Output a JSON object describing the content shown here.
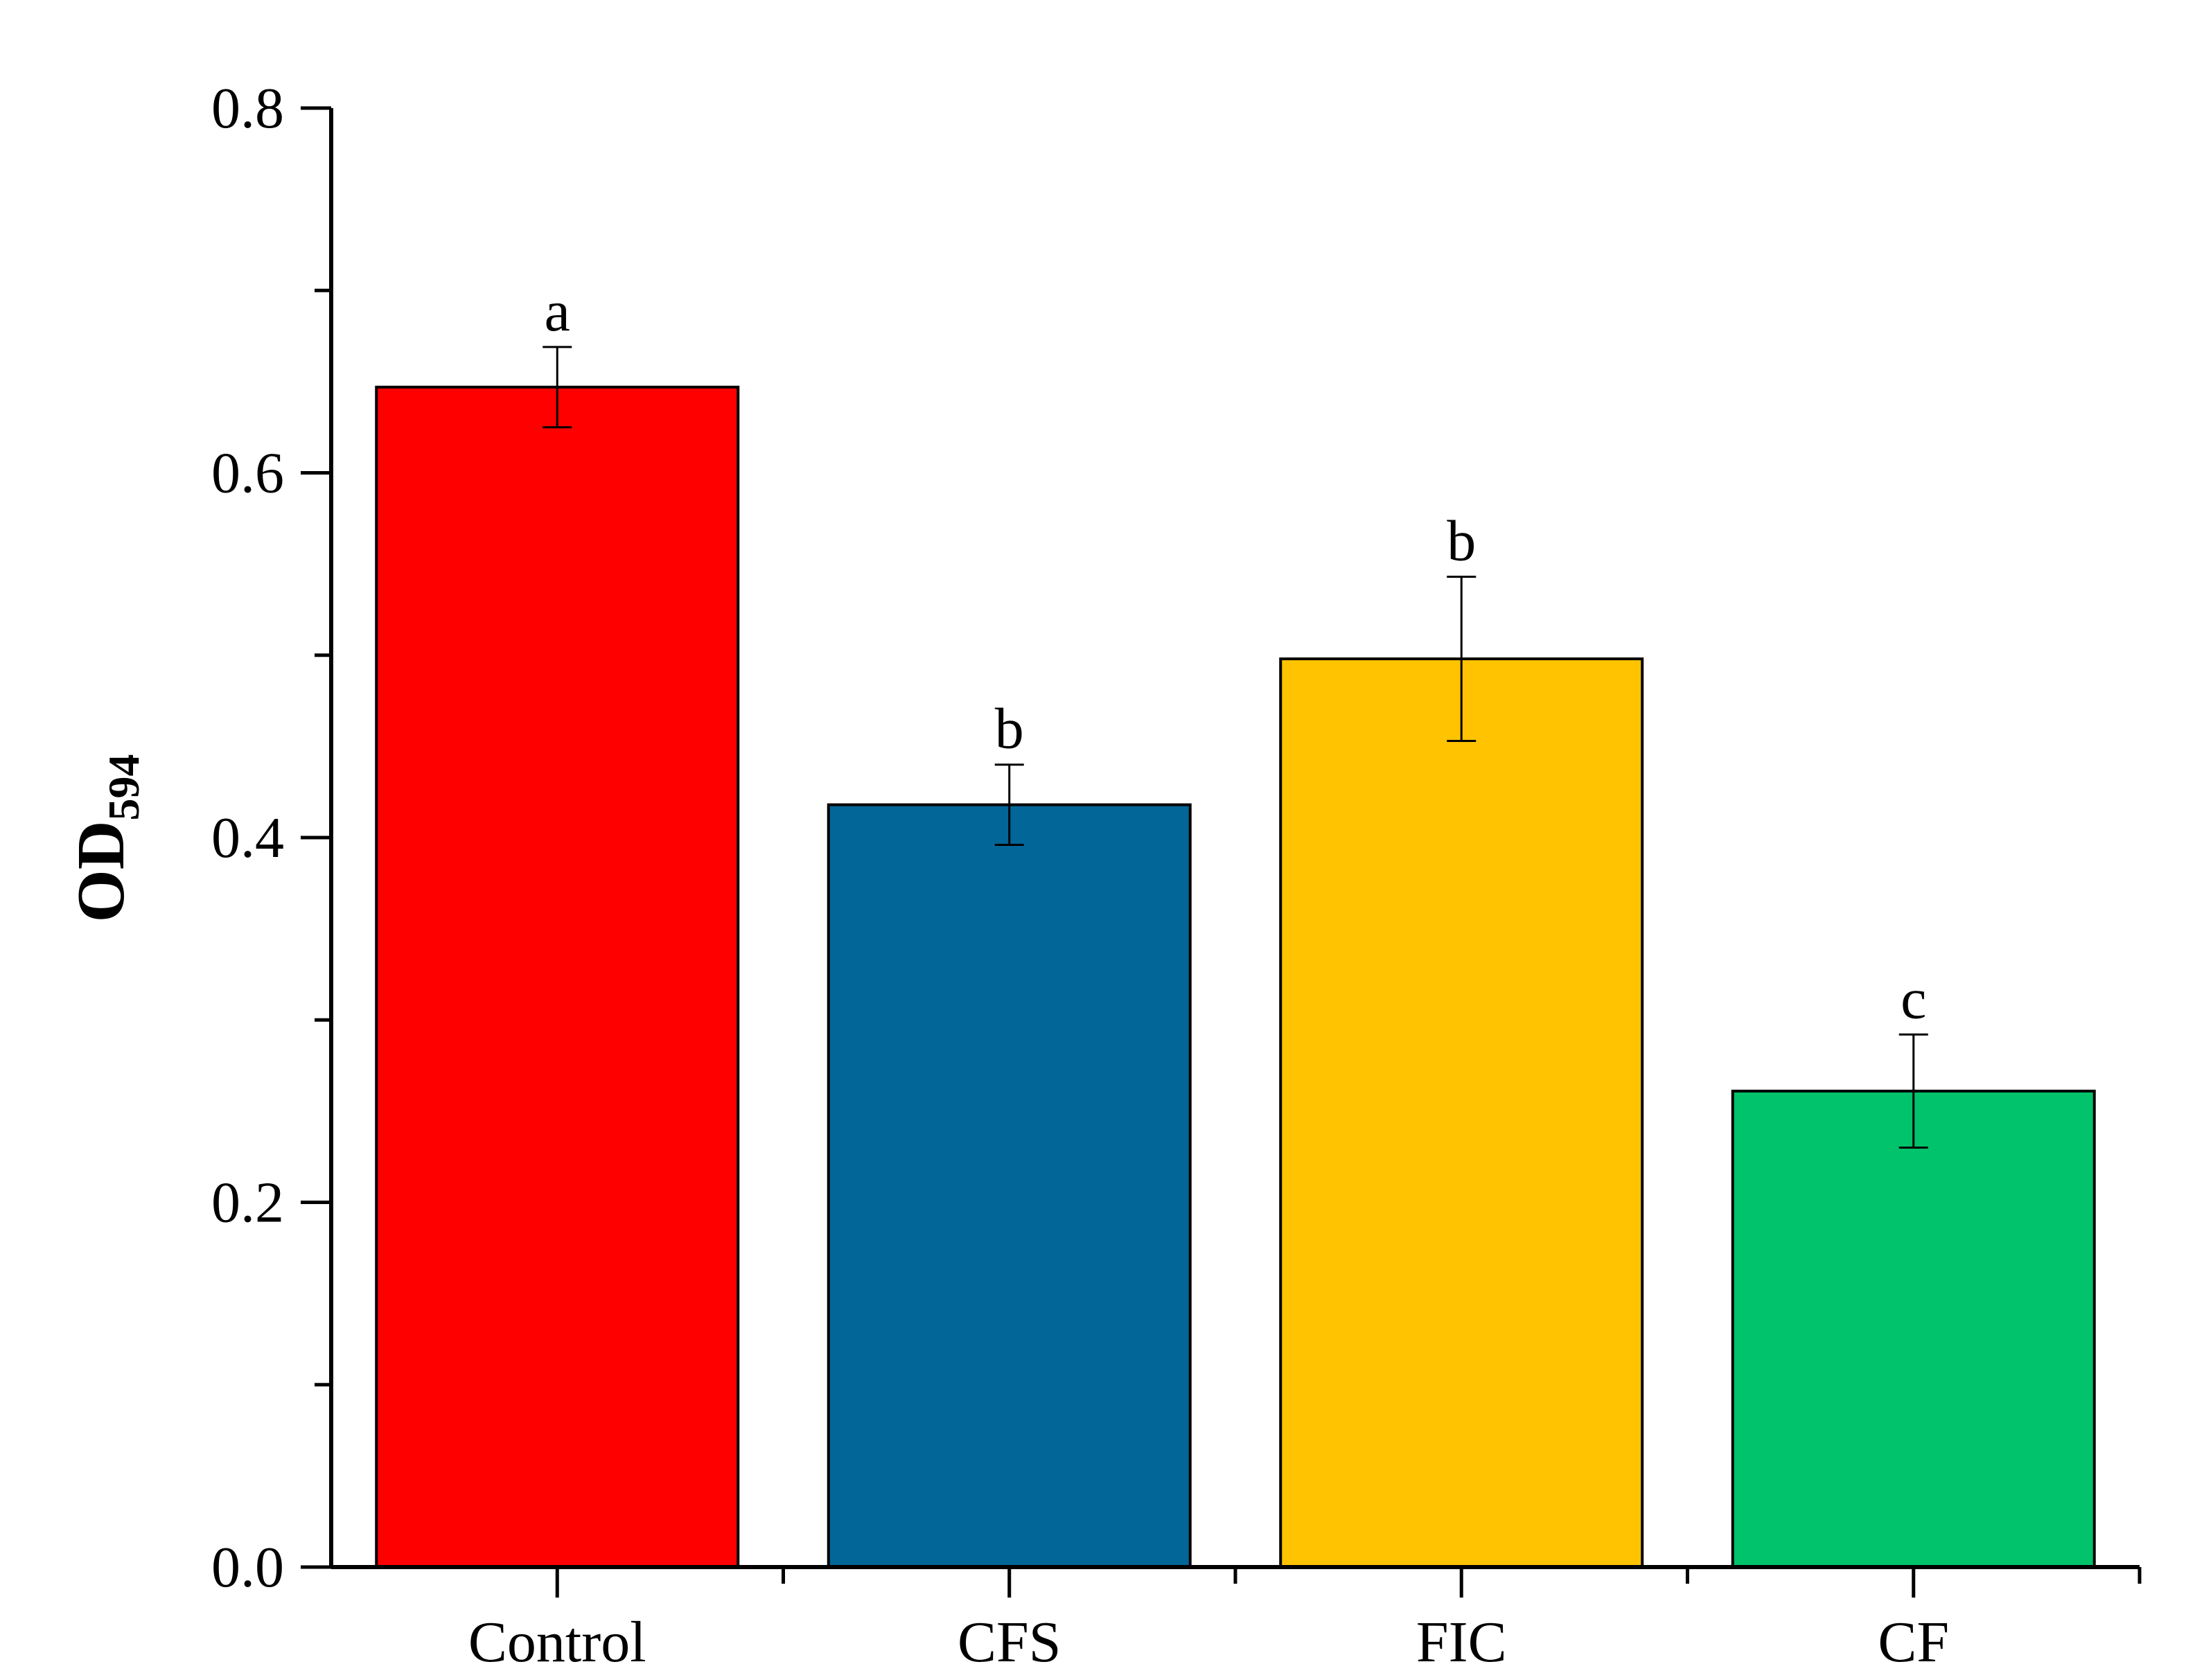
{
  "chart_data": {
    "type": "bar",
    "categories": [
      "Control",
      "CFS",
      "FIC",
      "CF"
    ],
    "values": [
      0.647,
      0.418,
      0.498,
      0.261
    ],
    "errors": [
      0.022,
      0.022,
      0.045,
      0.031
    ],
    "significance": [
      "a",
      "b",
      "b",
      "c"
    ],
    "colors": [
      "#FF0000",
      "#036699",
      "#FFC301",
      "#00C36B"
    ],
    "ylabel": "OD",
    "ylabel_subscript": "594",
    "xlabel": "",
    "ylim": [
      0,
      0.8
    ],
    "yticks": [
      "0.0",
      "0.2",
      "0.4",
      "0.6",
      "0.8"
    ],
    "yticks_values": [
      0,
      0.2,
      0.4,
      0.6,
      0.8
    ],
    "yminor_values": [
      0.1,
      0.3,
      0.5,
      0.7
    ],
    "grid": false,
    "legend": "none"
  }
}
